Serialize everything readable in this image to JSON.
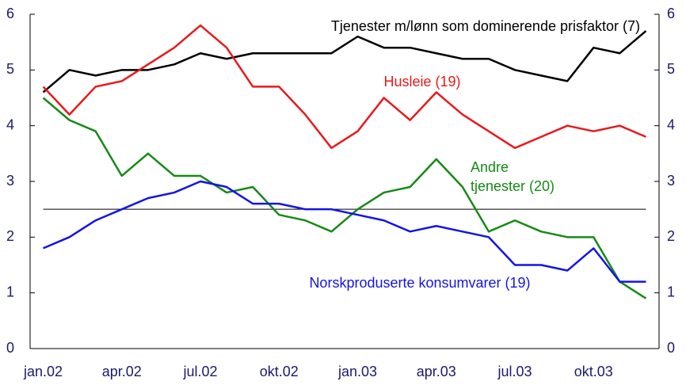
{
  "chart_data": {
    "type": "line",
    "categories": [
      "jan.02",
      null,
      null,
      "apr.02",
      null,
      null,
      "jul.02",
      null,
      null,
      "okt.02",
      null,
      null,
      "jan.03",
      null,
      null,
      "apr.03",
      null,
      null,
      "jul.03",
      null,
      null,
      "okt.03",
      null,
      null
    ],
    "series": [
      {
        "name": "Tjenester m/lønn som dominerende prisfaktor (7)",
        "color": "#000000",
        "values": [
          4.6,
          5.0,
          4.9,
          5.0,
          5.0,
          5.1,
          5.3,
          5.2,
          5.3,
          5.3,
          5.3,
          5.3,
          5.6,
          5.4,
          5.4,
          5.3,
          5.2,
          5.2,
          5.0,
          4.9,
          4.8,
          5.4,
          5.3,
          5.7
        ]
      },
      {
        "name": "Husleie (19)",
        "color": "#e8191c",
        "values": [
          4.7,
          4.2,
          4.7,
          4.8,
          5.1,
          5.4,
          5.8,
          5.4,
          4.7,
          4.7,
          4.2,
          3.6,
          3.9,
          4.5,
          4.1,
          4.6,
          4.2,
          3.9,
          3.6,
          3.8,
          4.0,
          3.9,
          4.0,
          3.8
        ]
      },
      {
        "name": "Andre tjenester (20)",
        "color": "#168a16",
        "values": [
          4.5,
          4.1,
          3.9,
          3.1,
          3.5,
          3.1,
          3.1,
          2.8,
          2.9,
          2.4,
          2.3,
          2.1,
          2.5,
          2.8,
          2.9,
          3.4,
          2.9,
          2.1,
          2.3,
          2.1,
          2.0,
          2.0,
          1.2,
          0.9
        ]
      },
      {
        "name": "Norskproduserte konsumvarer (19)",
        "color": "#1414e6",
        "values": [
          1.8,
          2.0,
          2.3,
          2.5,
          2.7,
          2.8,
          3.0,
          2.9,
          2.6,
          2.6,
          2.5,
          2.5,
          2.4,
          2.3,
          2.1,
          2.2,
          2.1,
          2.0,
          1.5,
          1.5,
          1.4,
          1.8,
          1.2,
          1.2
        ]
      }
    ],
    "reference_line": 2.5,
    "ylim": [
      0,
      6
    ],
    "yticks": [
      0,
      1,
      2,
      3,
      4,
      5,
      6
    ],
    "y2lim": [
      0,
      6
    ],
    "y2ticks": [
      0,
      1,
      2,
      3,
      4,
      5,
      6
    ]
  }
}
